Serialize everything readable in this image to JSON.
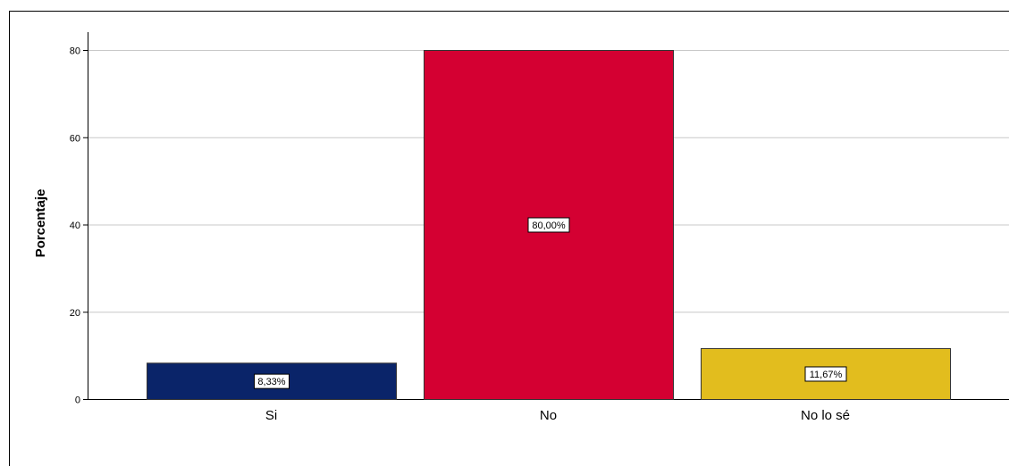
{
  "chart_data": {
    "type": "bar",
    "title": "",
    "xlabel": "",
    "ylabel": "Porcentaje",
    "categories": [
      "Si",
      "No",
      "No lo sé"
    ],
    "values": [
      8.33,
      80.0,
      11.67
    ],
    "data_labels": [
      "8,33%",
      "80,00%",
      "11,67%"
    ],
    "colors": [
      "#0a2469",
      "#d40032",
      "#e2bd1e"
    ],
    "yticks": [
      0,
      20,
      40,
      60,
      80
    ],
    "ylim": [
      0,
      80
    ],
    "grid": true,
    "legend": "none"
  }
}
